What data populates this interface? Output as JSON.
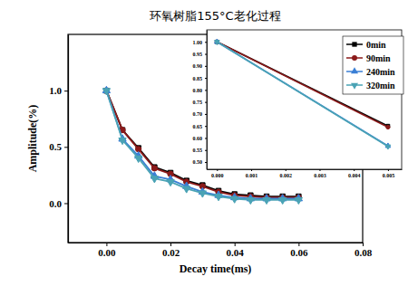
{
  "chart_data": [
    {
      "type": "line",
      "title": "环氧树脂155°C老化过程",
      "x_label": "Decay time(ms)",
      "y_label": "Amplitude(%)",
      "x": [
        0,
        0.005,
        0.01,
        0.015,
        0.02,
        0.025,
        0.03,
        0.035,
        0.04,
        0.045,
        0.05,
        0.055,
        0.06
      ],
      "xlim": [
        -0.012,
        0.08
      ],
      "xticks": [
        {
          "value": 0,
          "label": "0.00"
        },
        {
          "value": 0.02,
          "label": "0.02"
        },
        {
          "value": 0.04,
          "label": "0.04"
        },
        {
          "value": 0.06,
          "label": "0.06"
        },
        {
          "value": 0.08,
          "label": "0.08"
        }
      ],
      "ylim": [
        -0.35,
        1.5
      ],
      "yticks": [
        {
          "value": 0,
          "label": "0.0"
        },
        {
          "value": 0.5,
          "label": "0.5"
        },
        {
          "value": 1,
          "label": "1.0"
        }
      ],
      "legend": "upper right",
      "series": [
        {
          "name": "0min",
          "color": "#000000",
          "marker": "square",
          "values": [
            1.0,
            0.65,
            0.49,
            0.32,
            0.27,
            0.2,
            0.16,
            0.11,
            0.08,
            0.07,
            0.06,
            0.06,
            0.06
          ]
        },
        {
          "name": "90min",
          "color": "#8b1a1a",
          "marker": "circle",
          "values": [
            1.0,
            0.65,
            0.48,
            0.31,
            0.26,
            0.19,
            0.15,
            0.1,
            0.07,
            0.06,
            0.05,
            0.05,
            0.05
          ]
        },
        {
          "name": "240min",
          "color": "#3a7fd5",
          "marker": "triangle",
          "values": [
            1.0,
            0.57,
            0.42,
            0.24,
            0.21,
            0.15,
            0.1,
            0.07,
            0.05,
            0.04,
            0.04,
            0.04,
            0.04
          ]
        },
        {
          "name": "320min",
          "color": "#4aa3b5",
          "marker": "triangle-down",
          "values": [
            1.0,
            0.56,
            0.4,
            0.22,
            0.19,
            0.13,
            0.09,
            0.06,
            0.04,
            0.03,
            0.03,
            0.03,
            0.03
          ]
        }
      ]
    },
    {
      "type": "line",
      "x": [
        0,
        0.005
      ],
      "xlim": [
        -0.0003,
        0.0054
      ],
      "xticks": [
        {
          "value": 0,
          "label": "0.000"
        },
        {
          "value": 0.001,
          "label": "0.001"
        },
        {
          "value": 0.002,
          "label": "0.002"
        },
        {
          "value": 0.003,
          "label": "0.003"
        },
        {
          "value": 0.004,
          "label": "0.004"
        },
        {
          "value": 0.005,
          "label": "0.005"
        }
      ],
      "ylim": [
        0.47,
        1.05
      ],
      "yticks": [
        {
          "value": 0.5,
          "label": "0.50"
        },
        {
          "value": 0.55,
          "label": "0.55"
        },
        {
          "value": 0.6,
          "label": "0.60"
        },
        {
          "value": 0.65,
          "label": "0.65"
        },
        {
          "value": 0.7,
          "label": "0.70"
        },
        {
          "value": 0.75,
          "label": "0.75"
        },
        {
          "value": 0.8,
          "label": "0.80"
        },
        {
          "value": 0.85,
          "label": "0.85"
        },
        {
          "value": 0.9,
          "label": "0.90"
        },
        {
          "value": 0.95,
          "label": "0.95"
        },
        {
          "value": 1,
          "label": "1.00"
        }
      ],
      "series": [
        {
          "name": "0min",
          "color": "#000000",
          "marker": "square",
          "values": [
            1.0,
            0.65
          ]
        },
        {
          "name": "90min",
          "color": "#8b1a1a",
          "marker": "circle",
          "values": [
            1.0,
            0.645
          ]
        },
        {
          "name": "240min",
          "color": "#3a7fd5",
          "marker": "triangle",
          "values": [
            1.0,
            0.567
          ]
        },
        {
          "name": "320min",
          "color": "#4aa3b5",
          "marker": "triangle-down",
          "values": [
            1.0,
            0.565
          ]
        }
      ]
    }
  ]
}
